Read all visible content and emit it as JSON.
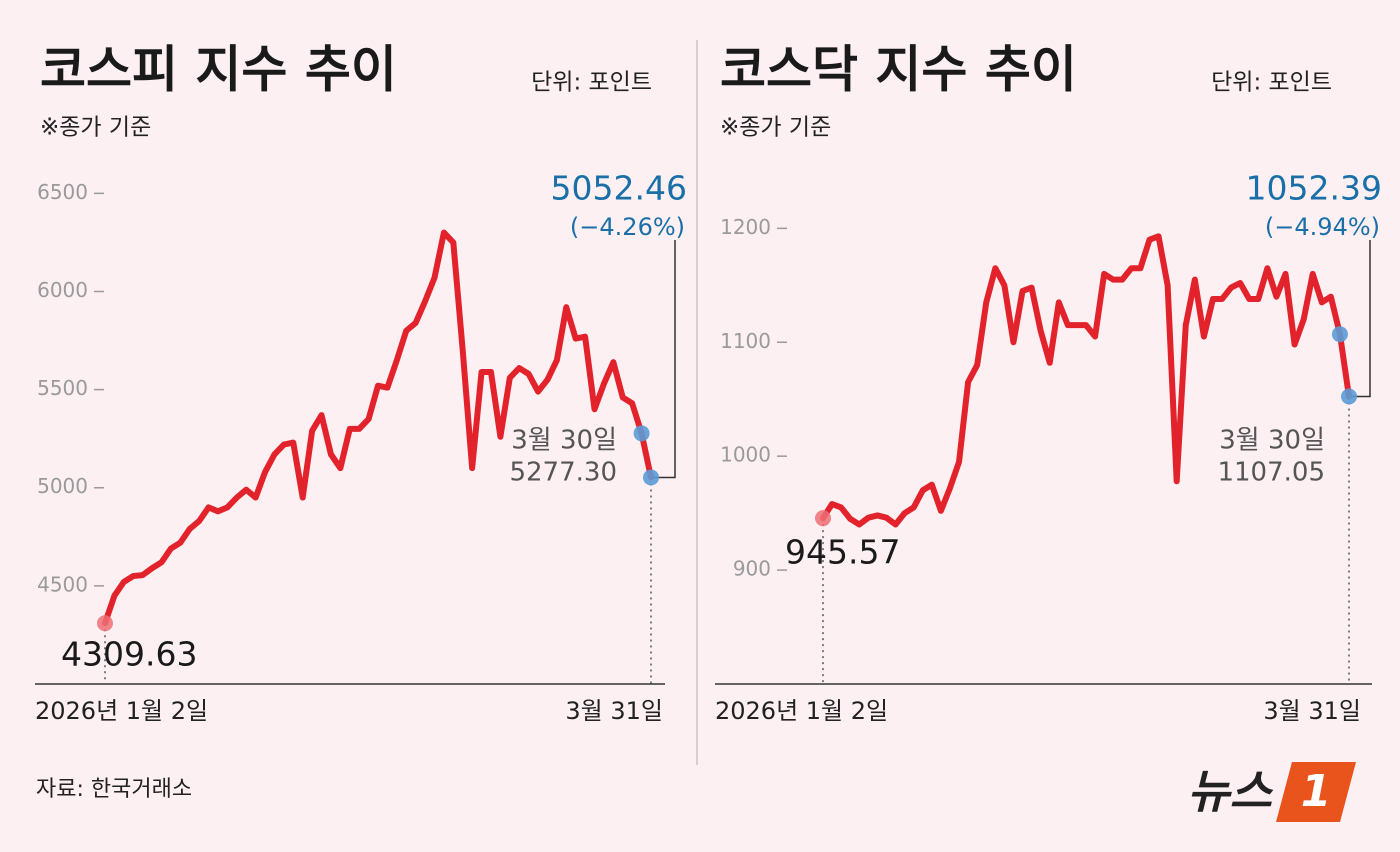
{
  "chart_data": [
    {
      "type": "line",
      "title": "코스피 지수 추이",
      "unit": "단위: 포인트",
      "note": "※종가 기준",
      "categories": [
        "2026년 1월 2일",
        null,
        null,
        null,
        null,
        null,
        null,
        null,
        null,
        null,
        null,
        null,
        null,
        null,
        null,
        null,
        null,
        null,
        null,
        null,
        null,
        null,
        null,
        null,
        null,
        null,
        null,
        null,
        null,
        null,
        null,
        null,
        null,
        null,
        null,
        null,
        null,
        null,
        null,
        null,
        null,
        null,
        null,
        null,
        null,
        null,
        null,
        null,
        null,
        null,
        null,
        null,
        null,
        null,
        null,
        null,
        null,
        null,
        "3월 31일"
      ],
      "series": [
        {
          "name": "코스피",
          "color": "#e3232c",
          "values": [
            4309.63,
            4450,
            4520,
            4550,
            4555,
            4590,
            4620,
            4690,
            4720,
            4790,
            4830,
            4900,
            4880,
            4900,
            4950,
            4990,
            4950,
            5080,
            5170,
            5220,
            5230,
            4950,
            5290,
            5370,
            5170,
            5100,
            5300,
            5300,
            5350,
            5520,
            5510,
            5650,
            5800,
            5840,
            5950,
            6070,
            6300,
            6250,
            5700,
            5100,
            5590,
            5590,
            5260,
            5560,
            5610,
            5580,
            5490,
            5550,
            5650,
            5920,
            5760,
            5770,
            5400,
            5530,
            5640,
            5460,
            5430,
            5277.3,
            5052.46
          ],
          "value_labels": [
            "4309.63",
            null,
            null,
            null,
            null,
            null,
            null,
            null,
            null,
            null,
            null,
            null,
            null,
            null,
            null,
            null,
            null,
            null,
            null,
            null,
            null,
            null,
            null,
            null,
            null,
            null,
            null,
            null,
            null,
            null,
            null,
            null,
            null,
            null,
            null,
            null,
            null,
            null,
            null,
            null,
            null,
            null,
            null,
            null,
            null,
            null,
            null,
            null,
            null,
            null,
            null,
            null,
            null,
            null,
            null,
            null,
            null,
            "5277.30",
            "5052.46"
          ]
        }
      ],
      "prev_date_label": "3월 30일",
      "change_label": "(−4.26%)",
      "start_color": "#ee6f74",
      "end_color": "#5b9bd5",
      "last_label_color": "#1a6fa8",
      "ylim": [
        4000,
        6670
      ],
      "yticks": [
        4500,
        5000,
        5500,
        6000,
        6500
      ]
    },
    {
      "type": "line",
      "title": "코스닥 지수 추이",
      "unit": "단위: 포인트",
      "note": "※종가 기준",
      "categories": [
        "2026년 1월 2일",
        null,
        null,
        null,
        null,
        null,
        null,
        null,
        null,
        null,
        null,
        null,
        null,
        null,
        null,
        null,
        null,
        null,
        null,
        null,
        null,
        null,
        null,
        null,
        null,
        null,
        null,
        null,
        null,
        null,
        null,
        null,
        null,
        null,
        null,
        null,
        null,
        null,
        null,
        null,
        null,
        null,
        null,
        null,
        null,
        null,
        null,
        null,
        null,
        null,
        null,
        null,
        null,
        null,
        null,
        null,
        null,
        null,
        "3월 31일"
      ],
      "series": [
        {
          "name": "코스닥",
          "color": "#e3232c",
          "values": [
            945.57,
            958,
            955,
            945,
            940,
            946,
            948,
            946,
            940,
            950,
            955,
            970,
            975,
            952,
            972,
            995,
            1065,
            1080,
            1135,
            1165,
            1150,
            1100,
            1145,
            1148,
            1110,
            1082,
            1135,
            1115,
            1115,
            1115,
            1105,
            1160,
            1155,
            1155,
            1165,
            1165,
            1190,
            1193,
            1150,
            978,
            1115,
            1155,
            1105,
            1138,
            1138,
            1148,
            1152,
            1138,
            1138,
            1165,
            1140,
            1160,
            1098,
            1120,
            1160,
            1135,
            1140,
            1107.05,
            1052.39
          ],
          "value_labels": [
            "945.57",
            null,
            null,
            null,
            null,
            null,
            null,
            null,
            null,
            null,
            null,
            null,
            null,
            null,
            null,
            null,
            null,
            null,
            null,
            null,
            null,
            null,
            null,
            null,
            null,
            null,
            null,
            null,
            null,
            null,
            null,
            null,
            null,
            null,
            null,
            null,
            null,
            null,
            null,
            null,
            null,
            null,
            null,
            null,
            null,
            null,
            null,
            null,
            null,
            null,
            null,
            null,
            null,
            null,
            null,
            null,
            null,
            "1107.05",
            "1052.39"
          ]
        }
      ],
      "prev_date_label": "3월 30일",
      "change_label": "(−4.94%)",
      "start_color": "#ee6f74",
      "end_color": "#5b9bd5",
      "last_label_color": "#1a6fa8",
      "ylim": [
        800,
        1260
      ],
      "yticks": [
        900,
        1000,
        1100,
        1200
      ]
    }
  ],
  "source": "자료: 한국거래소",
  "logo": {
    "text": "뉴스",
    "mark": "1"
  }
}
